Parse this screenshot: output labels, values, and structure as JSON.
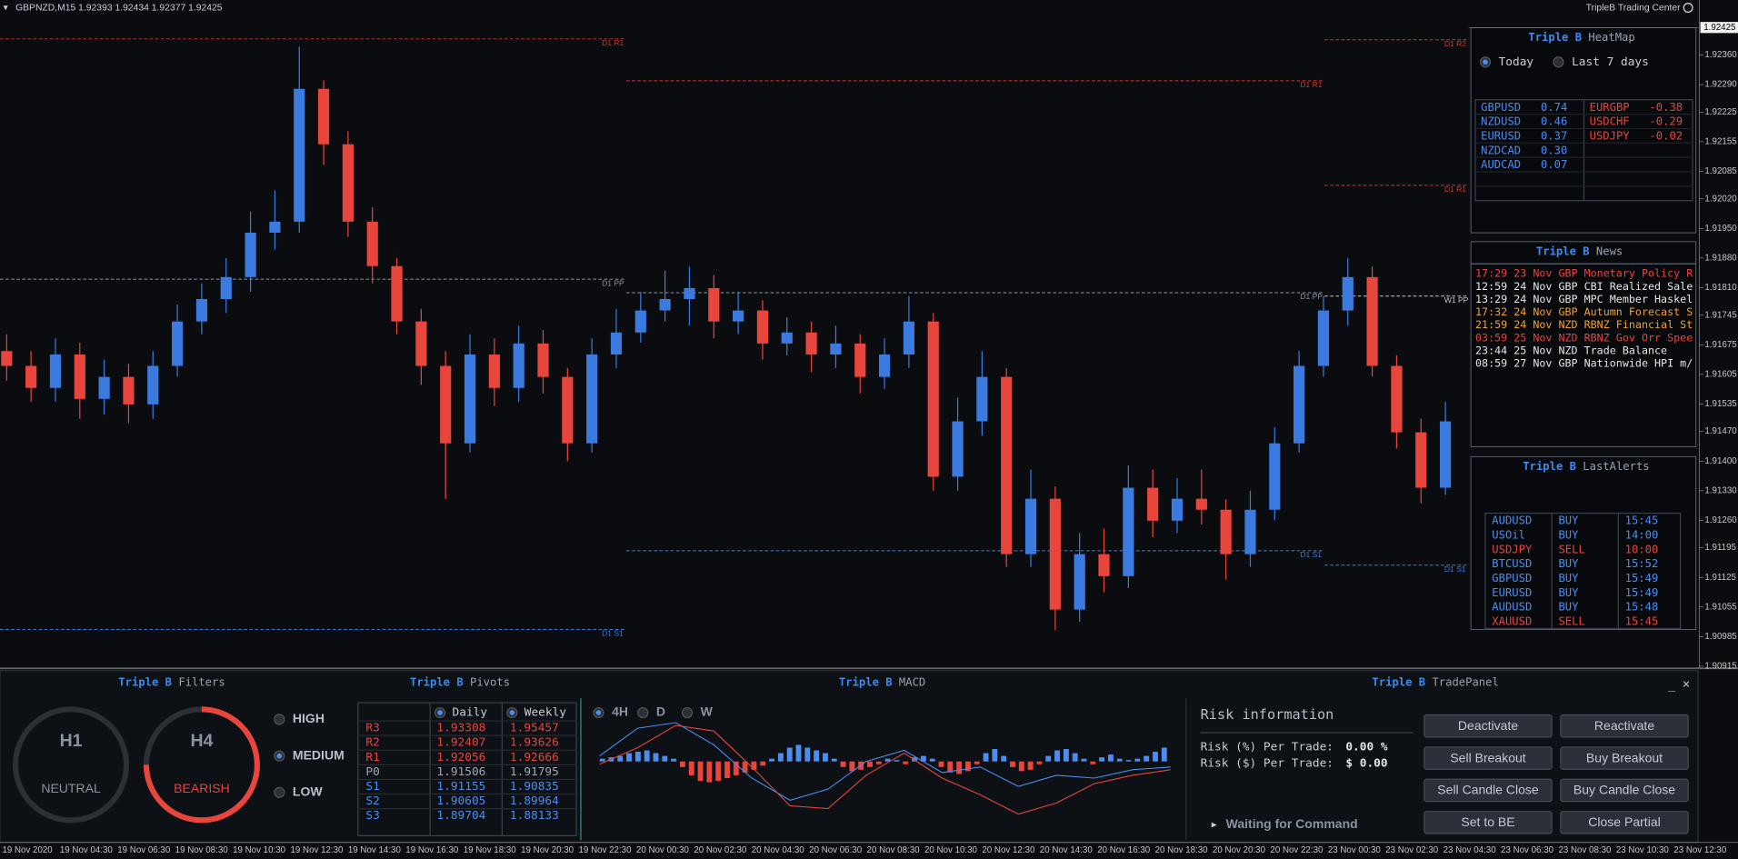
{
  "header": {
    "symbol_line": "GBPNZD,M15  1.92393 1.92434 1.92377 1.92425",
    "brand": "TripleB Trading Center"
  },
  "chart_data": {
    "type": "candlestick",
    "open": [
      1.9166,
      1.91625,
      1.91573,
      1.91652,
      1.91547,
      1.91599,
      1.91534,
      1.91625,
      1.9173,
      1.91783,
      1.91835,
      1.9194,
      1.91966,
      1.9228,
      1.92149,
      1.91966,
      1.91861,
      1.9173,
      1.91625,
      1.91442,
      1.91652,
      1.91573,
      1.91678,
      1.91599,
      1.91442,
      1.91652,
      1.91704,
      1.91756,
      1.91783,
      1.91809,
      1.9173,
      1.91756,
      1.91678,
      1.91704,
      1.91652,
      1.91678,
      1.91599,
      1.91652,
      1.9173,
      1.91363,
      1.91494,
      1.91599,
      1.9118,
      1.91311,
      1.91049,
      1.9118,
      1.91128,
      1.91337,
      1.91259,
      1.91311,
      1.91285,
      1.9118,
      1.91285,
      1.91442,
      1.91625,
      1.91756,
      1.91835,
      1.91625,
      1.91468,
      1.91337
    ],
    "high": [
      1.917,
      1.9166,
      1.9169,
      1.9168,
      1.9164,
      1.9163,
      1.9166,
      1.9177,
      1.9182,
      1.9188,
      1.9199,
      1.9204,
      1.9238,
      1.923,
      1.9218,
      1.92,
      1.9188,
      1.9176,
      1.9166,
      1.917,
      1.9169,
      1.9172,
      1.9171,
      1.9162,
      1.9169,
      1.9176,
      1.918,
      1.9185,
      1.9186,
      1.9184,
      1.918,
      1.9178,
      1.9174,
      1.9173,
      1.9172,
      1.917,
      1.9169,
      1.9179,
      1.9175,
      1.9155,
      1.9166,
      1.9162,
      1.9138,
      1.9134,
      1.9123,
      1.9124,
      1.9139,
      1.9138,
      1.9136,
      1.9138,
      1.9131,
      1.9133,
      1.9148,
      1.9166,
      1.9179,
      1.9188,
      1.9186,
      1.9165,
      1.915,
      1.9154
    ],
    "low": [
      1.9159,
      1.9154,
      1.9154,
      1.915,
      1.9151,
      1.9149,
      1.915,
      1.916,
      1.917,
      1.9175,
      1.918,
      1.919,
      1.9194,
      1.921,
      1.9193,
      1.9182,
      1.917,
      1.9158,
      1.9131,
      1.9142,
      1.9153,
      1.9154,
      1.9156,
      1.914,
      1.9142,
      1.9162,
      1.9168,
      1.9173,
      1.9172,
      1.9169,
      1.917,
      1.9164,
      1.9165,
      1.9161,
      1.9162,
      1.9156,
      1.9157,
      1.9162,
      1.9133,
      1.9133,
      1.9146,
      1.9115,
      1.9115,
      1.91,
      1.9102,
      1.9109,
      1.911,
      1.9122,
      1.9123,
      1.9125,
      1.9112,
      1.9115,
      1.9126,
      1.9142,
      1.916,
      1.9172,
      1.916,
      1.9143,
      1.913,
      1.9132
    ],
    "close": [
      1.91625,
      1.91573,
      1.91652,
      1.91547,
      1.91599,
      1.91534,
      1.91625,
      1.9173,
      1.91783,
      1.91835,
      1.9194,
      1.91966,
      1.9228,
      1.92149,
      1.91966,
      1.91861,
      1.9173,
      1.91625,
      1.91442,
      1.91652,
      1.91573,
      1.91678,
      1.91599,
      1.91442,
      1.91652,
      1.91704,
      1.91756,
      1.91783,
      1.91809,
      1.9173,
      1.91756,
      1.91678,
      1.91704,
      1.91652,
      1.91678,
      1.91599,
      1.91652,
      1.9173,
      1.91363,
      1.91494,
      1.91599,
      1.9118,
      1.91311,
      1.91049,
      1.9118,
      1.91128,
      1.91337,
      1.91259,
      1.91311,
      1.91285,
      1.9118,
      1.91285,
      1.91442,
      1.91625,
      1.91756,
      1.91835,
      1.91625,
      1.91468,
      1.91337,
      1.91494
    ],
    "up_color": "#3b7be0",
    "down_color": "#e8453c",
    "ylim": [
      1.9091,
      1.9249
    ],
    "yticks": [
      {
        "value": 1.9236,
        "label": "1.92360"
      },
      {
        "value": 1.9229,
        "label": "1.92290"
      },
      1.92225,
      1.92155,
      1.92085,
      {
        "value": 1.9202,
        "label": "1.92020"
      },
      {
        "value": 1.9195,
        "label": "1.91950"
      },
      {
        "value": 1.9188,
        "label": "1.91880"
      },
      {
        "value": 1.9181,
        "label": "1.91810"
      },
      1.91745,
      1.91675,
      1.91605,
      1.91535,
      {
        "value": 1.9147,
        "label": "1.91470"
      },
      {
        "value": 1.914,
        "label": "1.91400"
      },
      {
        "value": 1.9133,
        "label": "1.91330"
      },
      {
        "value": 1.9126,
        "label": "1.91260"
      },
      1.91195,
      1.91125,
      1.91055,
      1.90985,
      1.90915
    ],
    "current_price": 1.92425,
    "x_labels": [
      "19 Nov 2020",
      "19 Nov 04:30",
      "19 Nov 06:30",
      "19 Nov 08:30",
      "19 Nov 10:30",
      "19 Nov 12:30",
      "19 Nov 14:30",
      "19 Nov 16:30",
      "19 Nov 18:30",
      "19 Nov 20:30",
      "19 Nov 22:30",
      "20 Nov 00:30",
      "20 Nov 02:30",
      "20 Nov 04:30",
      "20 Nov 06:30",
      "20 Nov 08:30",
      "20 Nov 10:30",
      "20 Nov 12:30",
      "20 Nov 14:30",
      "20 Nov 16:30",
      "20 Nov 18:30",
      "20 Nov 20:30",
      "20 Nov 22:30",
      "23 Nov 00:30",
      "23 Nov 02:30",
      "23 Nov 04:30",
      "23 Nov 06:30",
      "23 Nov 08:30",
      "23 Nov 10:30",
      "23 Nov 12:30"
    ],
    "pivot_sessions": [
      [
        {
          "label": "D1 R1",
          "value": 1.92398,
          "color": "#d8352c"
        },
        {
          "label": "D1 PP",
          "value": 1.9183,
          "color": "#8a93a3"
        },
        {
          "label": "D1 S1",
          "value": 1.91002,
          "color": "#3b7be0"
        }
      ],
      [
        {
          "label": "D1 R1",
          "value": 1.92299,
          "color": "#d8352c"
        },
        {
          "label": "D1 PP",
          "value": 1.91798,
          "color": "#8a93a3"
        },
        {
          "label": "D1 S1",
          "value": 1.91188,
          "color": "#3b7be0"
        }
      ],
      [
        {
          "label": "D1 R2",
          "value": 1.92396,
          "color": "#d8352c"
        },
        {
          "label": "D1 R1",
          "value": 1.92052,
          "color": "#d8352c"
        },
        {
          "label": "W1 PP",
          "value": 1.9179,
          "color": "#c8c8c8"
        },
        {
          "label": "D1 S1",
          "value": 1.91154,
          "color": "#3b7be0"
        }
      ]
    ]
  },
  "heatmap": {
    "brand": "Triple B",
    "title": "HeatMap",
    "options": [
      "Today",
      "Last 7 days"
    ],
    "selected": 0,
    "strong": [
      {
        "pair": "GBPUSD",
        "value": "0.74"
      },
      {
        "pair": "NZDUSD",
        "value": "0.46"
      },
      {
        "pair": "EURUSD",
        "value": "0.37"
      },
      {
        "pair": "NZDCAD",
        "value": "0.30"
      },
      {
        "pair": "AUDCAD",
        "value": "0.07"
      }
    ],
    "weak": [
      {
        "pair": "EURGBP",
        "value": "-0.38"
      },
      {
        "pair": "USDCHF",
        "value": "-0.29"
      },
      {
        "pair": "USDJPY",
        "value": "-0.02"
      }
    ]
  },
  "news": {
    "brand": "Triple B",
    "title": "News",
    "items": [
      {
        "text": "17:29 23 Nov GBP Monetary Policy R",
        "color": "#e8453c"
      },
      {
        "text": "12:59 24 Nov GBP CBI Realized Sale",
        "color": "#e6e6e6"
      },
      {
        "text": "13:29 24 Nov GBP MPC Member Haskel",
        "color": "#e6e6e6"
      },
      {
        "text": "17:32 24 Nov GBP Autumn Forecast S",
        "color": "#f0a030"
      },
      {
        "text": "21:59 24 Nov NZD RBNZ Financial St",
        "color": "#f0a030"
      },
      {
        "text": "03:59 25 Nov NZD RBNZ Gov Orr Spee",
        "color": "#e8453c"
      },
      {
        "text": "23:44 25 Nov NZD Trade Balance",
        "color": "#e6e6e6"
      },
      {
        "text": "08:59 27 Nov GBP Nationwide HPI m/",
        "color": "#e6e6e6"
      }
    ]
  },
  "alerts": {
    "brand": "Triple B",
    "title": "LastAlerts",
    "rows": [
      [
        "AUDUSD",
        "BUY",
        "15:45"
      ],
      [
        "USOil",
        "BUY",
        "14:00"
      ],
      [
        "USDJPY",
        "SELL",
        "10:00"
      ],
      [
        "BTCUSD",
        "BUY",
        "15:52"
      ],
      [
        "GBPUSD",
        "BUY",
        "15:49"
      ],
      [
        "EURUSD",
        "BUY",
        "15:49"
      ],
      [
        "AUDUSD",
        "BUY",
        "15:48"
      ],
      [
        "XAUUSD",
        "SELL",
        "15:45"
      ]
    ]
  },
  "filters": {
    "brand": "Triple B",
    "title": "Filters",
    "gauges": [
      {
        "tf": "H1",
        "state": "NEUTRAL",
        "color": "#8a93a3"
      },
      {
        "tf": "H4",
        "state": "BEARISH",
        "color": "#e8453c"
      }
    ],
    "levels": [
      "HIGH",
      "MEDIUM",
      "LOW"
    ],
    "selected": 1
  },
  "pivots": {
    "brand": "Triple B",
    "title": "Pivots",
    "columns": [
      "Daily",
      "Weekly"
    ],
    "rows": [
      [
        "R3",
        "1.93308",
        "1.95457"
      ],
      [
        "R2",
        "1.92407",
        "1.93626"
      ],
      [
        "R1",
        "1.92056",
        "1.92666"
      ],
      [
        "P0",
        "1.91506",
        "1.91795"
      ],
      [
        "S1",
        "1.91155",
        "1.90835"
      ],
      [
        "S2",
        "1.90605",
        "1.89964"
      ],
      [
        "S3",
        "1.89704",
        "1.88133"
      ]
    ]
  },
  "macd": {
    "brand": "Triple B",
    "title": "MACD",
    "timeframes": [
      "4H",
      "D",
      "W"
    ],
    "selected": 0,
    "ylim": [
      -2,
      2
    ],
    "histogram": [
      0.1,
      0.15,
      0.2,
      0.3,
      0.35,
      0.4,
      0.3,
      0.2,
      0.1,
      -0.2,
      -0.5,
      -0.7,
      -0.75,
      -0.7,
      -0.6,
      -0.5,
      -0.4,
      -0.3,
      -0.15,
      0.1,
      0.3,
      0.5,
      0.6,
      0.5,
      0.4,
      0.3,
      0.1,
      -0.2,
      -0.35,
      -0.3,
      -0.2,
      -0.1,
      0.1,
      0.05,
      -0.1,
      0.15,
      0.2,
      0.1,
      -0.2,
      -0.4,
      -0.45,
      -0.35,
      -0.1,
      0.3,
      0.45,
      0.2,
      -0.2,
      -0.35,
      -0.3,
      -0.1,
      0.2,
      0.4,
      0.45,
      0.3,
      0.1,
      -0.1,
      0.15,
      0.25,
      0.1,
      0.05,
      0.1,
      0.2,
      0.35,
      0.5
    ],
    "main": [
      0.2,
      1.2,
      1.4,
      0.6,
      -0.6,
      -1.4,
      -1.0,
      0.0,
      0.4,
      -0.4,
      -0.2,
      -0.9,
      -0.5,
      -0.6,
      -0.3,
      -0.2
    ],
    "signal": [
      -0.1,
      0.5,
      1.3,
      1.1,
      -0.2,
      -1.6,
      -1.7,
      -0.5,
      0.3,
      -0.6,
      -1.2,
      -1.9,
      -1.5,
      -0.8,
      -0.5,
      -0.3
    ],
    "main_color": "#4a8ef0",
    "signal_color": "#e8453c"
  },
  "trade_panel": {
    "brand": "Triple B",
    "title": "TradePanel",
    "heading": "Risk information",
    "risk_pct_label": "Risk (%) Per Trade:",
    "risk_pct": "0.00 %",
    "risk_usd_label": "Risk ($) Per Trade:",
    "risk_usd": "$ 0.00",
    "status": "Waiting for Command",
    "buttons": [
      "Deactivate",
      "Reactivate",
      "Sell Breakout",
      "Buy Breakout",
      "Sell Candle Close",
      "Buy Candle Close",
      "Set to BE",
      "Close Partial"
    ]
  }
}
